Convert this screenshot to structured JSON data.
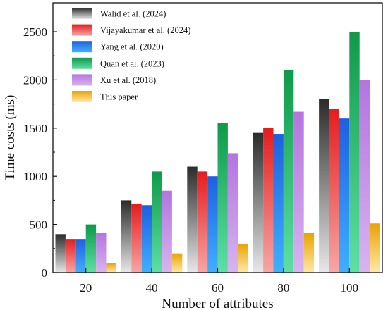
{
  "chart_data": {
    "type": "bar",
    "xlabel": "Number of attributes",
    "ylabel": "Time costs (ms)",
    "categories": [
      "20",
      "40",
      "60",
      "80",
      "100"
    ],
    "ylim": [
      0,
      2800
    ],
    "yticks": [
      0,
      500,
      1000,
      1500,
      2000,
      2500
    ],
    "grid": false,
    "legend_position": "top-left",
    "series": [
      {
        "name": "Walid et al. (2024)",
        "values": [
          400,
          750,
          1100,
          1450,
          1800
        ],
        "color_top": "#2b2b2b",
        "color_bottom": "#e8e8e8"
      },
      {
        "name": "Vijayakumar et al. (2024)",
        "values": [
          350,
          710,
          1050,
          1500,
          1700
        ],
        "color_top": "#e61c1c",
        "color_bottom": "#f7a6a6"
      },
      {
        "name": "Yang et al. (2020)",
        "values": [
          350,
          700,
          1000,
          1440,
          1600
        ],
        "color_top": "#1f5fe0",
        "color_bottom": "#3fb0ff"
      },
      {
        "name": "Quan et al. (2023)",
        "values": [
          500,
          1050,
          1550,
          2100,
          2500
        ],
        "color_top": "#0e9a4a",
        "color_bottom": "#5ee0a5"
      },
      {
        "name": "Xu et al. (2018)",
        "values": [
          410,
          850,
          1240,
          1670,
          2000
        ],
        "color_top": "#b574e0",
        "color_bottom": "#d8b4f0"
      },
      {
        "name": "This paper",
        "values": [
          100,
          200,
          300,
          410,
          510
        ],
        "color_top": "#e8a400",
        "color_bottom": "#ffe9a8"
      }
    ]
  }
}
